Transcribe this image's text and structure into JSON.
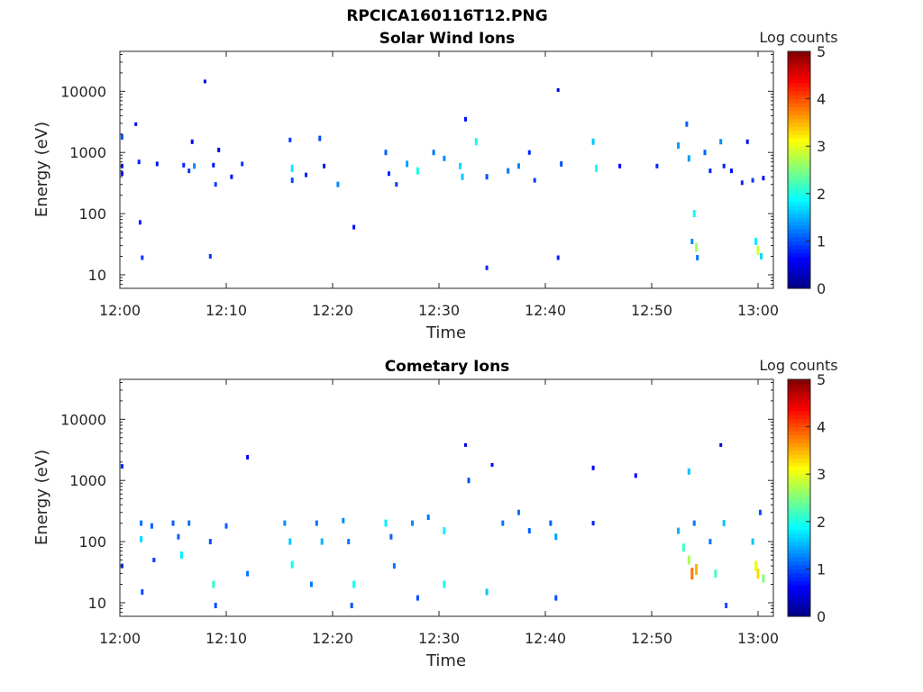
{
  "figure_title": "RPCICA160116T12.PNG",
  "colorbar": {
    "label": "Log counts",
    "min": 0,
    "max": 5,
    "ticks": [
      "0",
      "1",
      "2",
      "3",
      "4",
      "5"
    ],
    "colormap": "jet"
  },
  "chart_data": [
    {
      "type": "heatmap",
      "title": "Solar Wind Ions",
      "xlabel": "Time",
      "ylabel": "Energy (eV)",
      "x_tick_labels": [
        "12:00",
        "12:10",
        "12:20",
        "12:30",
        "12:40",
        "12:50",
        "13:00"
      ],
      "y_tick_labels": [
        "10",
        "100",
        "1000",
        "10000"
      ],
      "y_scale": "log",
      "ylim": [
        6,
        45000
      ],
      "xlim_minutes": [
        0,
        61.5
      ],
      "colorbar_label": "Log counts",
      "clim": [
        0,
        5
      ],
      "points": [
        {
          "t": 0.2,
          "e": 1800,
          "v": 1
        },
        {
          "t": 0.2,
          "e": 600,
          "v": 0.7
        },
        {
          "t": 0.2,
          "e": 450,
          "v": 0.6
        },
        {
          "t": 1.5,
          "e": 2900,
          "v": 0.5
        },
        {
          "t": 1.8,
          "e": 700,
          "v": 0.8
        },
        {
          "t": 1.9,
          "e": 72,
          "v": 0.8
        },
        {
          "t": 2.1,
          "e": 19,
          "v": 0.9
        },
        {
          "t": 3.5,
          "e": 650,
          "v": 0.7
        },
        {
          "t": 6.0,
          "e": 620,
          "v": 0.8
        },
        {
          "t": 6.5,
          "e": 500,
          "v": 0.9
        },
        {
          "t": 6.8,
          "e": 1500,
          "v": 0.6
        },
        {
          "t": 7.0,
          "e": 600,
          "v": 1.3
        },
        {
          "t": 8.0,
          "e": 14500,
          "v": 0.5
        },
        {
          "t": 8.5,
          "e": 20,
          "v": 0.9
        },
        {
          "t": 8.8,
          "e": 620,
          "v": 0.7
        },
        {
          "t": 9.0,
          "e": 300,
          "v": 0.9
        },
        {
          "t": 9.3,
          "e": 1100,
          "v": 0.6
        },
        {
          "t": 10.5,
          "e": 400,
          "v": 0.7
        },
        {
          "t": 11.5,
          "e": 650,
          "v": 0.9
        },
        {
          "t": 16.0,
          "e": 1600,
          "v": 0.9
        },
        {
          "t": 16.2,
          "e": 550,
          "v": 1.8
        },
        {
          "t": 16.2,
          "e": 350,
          "v": 1.0
        },
        {
          "t": 17.5,
          "e": 430,
          "v": 0.8
        },
        {
          "t": 18.8,
          "e": 1700,
          "v": 1.0
        },
        {
          "t": 19.2,
          "e": 600,
          "v": 0.7
        },
        {
          "t": 20.5,
          "e": 300,
          "v": 1.3
        },
        {
          "t": 22.0,
          "e": 60,
          "v": 0.7
        },
        {
          "t": 25.0,
          "e": 1000,
          "v": 1.1
        },
        {
          "t": 25.3,
          "e": 450,
          "v": 0.8
        },
        {
          "t": 26.0,
          "e": 300,
          "v": 0.9
        },
        {
          "t": 27.0,
          "e": 650,
          "v": 1.4
        },
        {
          "t": 28.0,
          "e": 500,
          "v": 2.0
        },
        {
          "t": 29.5,
          "e": 1000,
          "v": 1.2
        },
        {
          "t": 30.5,
          "e": 800,
          "v": 1.3
        },
        {
          "t": 32.0,
          "e": 600,
          "v": 1.7
        },
        {
          "t": 32.2,
          "e": 400,
          "v": 1.6
        },
        {
          "t": 32.5,
          "e": 3500,
          "v": 0.7
        },
        {
          "t": 33.5,
          "e": 1500,
          "v": 1.9
        },
        {
          "t": 34.5,
          "e": 400,
          "v": 1.0
        },
        {
          "t": 34.5,
          "e": 13,
          "v": 0.8
        },
        {
          "t": 36.5,
          "e": 500,
          "v": 1.2
        },
        {
          "t": 37.5,
          "e": 600,
          "v": 1.3
        },
        {
          "t": 38.5,
          "e": 1000,
          "v": 0.8
        },
        {
          "t": 39.0,
          "e": 350,
          "v": 0.9
        },
        {
          "t": 41.2,
          "e": 10500,
          "v": 0.5
        },
        {
          "t": 41.2,
          "e": 19,
          "v": 0.8
        },
        {
          "t": 41.5,
          "e": 650,
          "v": 1.0
        },
        {
          "t": 44.5,
          "e": 1500,
          "v": 1.6
        },
        {
          "t": 44.8,
          "e": 550,
          "v": 1.9
        },
        {
          "t": 47.0,
          "e": 600,
          "v": 0.6
        },
        {
          "t": 50.5,
          "e": 600,
          "v": 0.8
        },
        {
          "t": 52.5,
          "e": 1300,
          "v": 1.4
        },
        {
          "t": 53.3,
          "e": 2900,
          "v": 1.1
        },
        {
          "t": 53.5,
          "e": 800,
          "v": 1.4
        },
        {
          "t": 53.8,
          "e": 35,
          "v": 1.3
        },
        {
          "t": 54.0,
          "e": 100,
          "v": 1.9
        },
        {
          "t": 54.2,
          "e": 28,
          "v": 2.7
        },
        {
          "t": 54.3,
          "e": 19,
          "v": 1.2
        },
        {
          "t": 55.0,
          "e": 1000,
          "v": 1.1
        },
        {
          "t": 55.5,
          "e": 500,
          "v": 0.8
        },
        {
          "t": 56.5,
          "e": 1500,
          "v": 1.3
        },
        {
          "t": 56.8,
          "e": 600,
          "v": 0.8
        },
        {
          "t": 57.5,
          "e": 500,
          "v": 0.7
        },
        {
          "t": 58.5,
          "e": 320,
          "v": 0.8
        },
        {
          "t": 59.0,
          "e": 1500,
          "v": 0.7
        },
        {
          "t": 59.5,
          "e": 350,
          "v": 0.9
        },
        {
          "t": 59.8,
          "e": 35,
          "v": 1.8
        },
        {
          "t": 60.0,
          "e": 25,
          "v": 2.9
        },
        {
          "t": 60.3,
          "e": 20,
          "v": 1.7
        },
        {
          "t": 60.5,
          "e": 380,
          "v": 0.7
        }
      ]
    },
    {
      "type": "heatmap",
      "title": "Cometary Ions",
      "xlabel": "Time",
      "ylabel": "Energy (eV)",
      "x_tick_labels": [
        "12:00",
        "12:10",
        "12:20",
        "12:30",
        "12:40",
        "12:50",
        "13:00"
      ],
      "y_tick_labels": [
        "10",
        "100",
        "1000",
        "10000"
      ],
      "y_scale": "log",
      "ylim": [
        6,
        45000
      ],
      "xlim_minutes": [
        0,
        61.5
      ],
      "colorbar_label": "Log counts",
      "clim": [
        0,
        5
      ],
      "points": [
        {
          "t": 0.2,
          "e": 1700,
          "v": 0.8
        },
        {
          "t": 0.2,
          "e": 40,
          "v": 0.8
        },
        {
          "t": 2.0,
          "e": 200,
          "v": 1.2
        },
        {
          "t": 2.0,
          "e": 110,
          "v": 1.7
        },
        {
          "t": 2.1,
          "e": 15,
          "v": 1.0
        },
        {
          "t": 3.0,
          "e": 180,
          "v": 1.1
        },
        {
          "t": 3.2,
          "e": 50,
          "v": 0.9
        },
        {
          "t": 5.0,
          "e": 200,
          "v": 1.1
        },
        {
          "t": 5.5,
          "e": 120,
          "v": 1.1
        },
        {
          "t": 5.8,
          "e": 60,
          "v": 1.8
        },
        {
          "t": 6.5,
          "e": 200,
          "v": 1.2
        },
        {
          "t": 8.5,
          "e": 100,
          "v": 1.0
        },
        {
          "t": 8.8,
          "e": 20,
          "v": 2.1
        },
        {
          "t": 9.0,
          "e": 9,
          "v": 1.0
        },
        {
          "t": 10.0,
          "e": 180,
          "v": 1.1
        },
        {
          "t": 12.0,
          "e": 2400,
          "v": 0.6
        },
        {
          "t": 12.0,
          "e": 30,
          "v": 1.2
        },
        {
          "t": 15.5,
          "e": 200,
          "v": 1.3
        },
        {
          "t": 16.0,
          "e": 100,
          "v": 1.6
        },
        {
          "t": 16.2,
          "e": 42,
          "v": 1.9
        },
        {
          "t": 18.0,
          "e": 20,
          "v": 1.2
        },
        {
          "t": 18.5,
          "e": 200,
          "v": 1.2
        },
        {
          "t": 19.0,
          "e": 100,
          "v": 1.5
        },
        {
          "t": 21.0,
          "e": 220,
          "v": 1.3
        },
        {
          "t": 21.5,
          "e": 100,
          "v": 1.2
        },
        {
          "t": 22.0,
          "e": 20,
          "v": 2.0
        },
        {
          "t": 21.8,
          "e": 9,
          "v": 1.0
        },
        {
          "t": 25.0,
          "e": 200,
          "v": 1.8
        },
        {
          "t": 25.5,
          "e": 120,
          "v": 1.1
        },
        {
          "t": 25.8,
          "e": 40,
          "v": 1.2
        },
        {
          "t": 27.5,
          "e": 200,
          "v": 1.3
        },
        {
          "t": 28.0,
          "e": 12,
          "v": 1.0
        },
        {
          "t": 29.0,
          "e": 250,
          "v": 1.2
        },
        {
          "t": 30.5,
          "e": 150,
          "v": 1.8
        },
        {
          "t": 30.5,
          "e": 20,
          "v": 1.9
        },
        {
          "t": 32.5,
          "e": 3800,
          "v": 0.5
        },
        {
          "t": 32.8,
          "e": 1000,
          "v": 1.0
        },
        {
          "t": 34.5,
          "e": 15,
          "v": 1.6
        },
        {
          "t": 35.0,
          "e": 1800,
          "v": 0.5
        },
        {
          "t": 36.0,
          "e": 200,
          "v": 1.2
        },
        {
          "t": 37.5,
          "e": 300,
          "v": 1.2
        },
        {
          "t": 38.5,
          "e": 150,
          "v": 1.1
        },
        {
          "t": 40.5,
          "e": 200,
          "v": 1.1
        },
        {
          "t": 41.0,
          "e": 120,
          "v": 1.4
        },
        {
          "t": 41.0,
          "e": 12,
          "v": 1.0
        },
        {
          "t": 44.5,
          "e": 1600,
          "v": 0.6
        },
        {
          "t": 44.5,
          "e": 200,
          "v": 0.8
        },
        {
          "t": 48.5,
          "e": 1200,
          "v": 0.6
        },
        {
          "t": 52.5,
          "e": 150,
          "v": 1.5
        },
        {
          "t": 53.0,
          "e": 80,
          "v": 2.2
        },
        {
          "t": 53.5,
          "e": 50,
          "v": 2.7
        },
        {
          "t": 53.8,
          "e": 30,
          "v": 3.8
        },
        {
          "t": 54.2,
          "e": 35,
          "v": 3.5
        },
        {
          "t": 53.5,
          "e": 1400,
          "v": 1.6
        },
        {
          "t": 54.0,
          "e": 200,
          "v": 1.2
        },
        {
          "t": 55.5,
          "e": 100,
          "v": 1.2
        },
        {
          "t": 56.0,
          "e": 30,
          "v": 2.2
        },
        {
          "t": 56.5,
          "e": 3800,
          "v": 0.5
        },
        {
          "t": 56.8,
          "e": 200,
          "v": 1.6
        },
        {
          "t": 57.0,
          "e": 9,
          "v": 1.0
        },
        {
          "t": 59.5,
          "e": 100,
          "v": 1.6
        },
        {
          "t": 59.8,
          "e": 40,
          "v": 3.0
        },
        {
          "t": 60.0,
          "e": 30,
          "v": 3.3
        },
        {
          "t": 60.5,
          "e": 25,
          "v": 2.5
        },
        {
          "t": 60.2,
          "e": 300,
          "v": 1.0
        }
      ]
    }
  ]
}
